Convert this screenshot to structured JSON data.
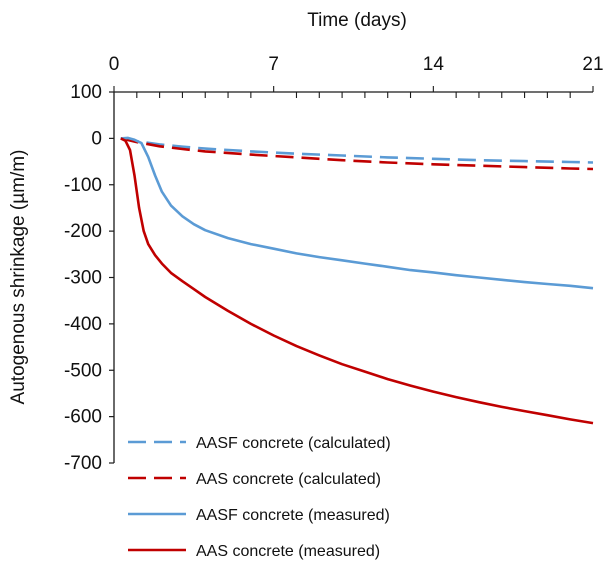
{
  "chart_data": {
    "type": "line",
    "title": "",
    "xlabel": "Time (days)",
    "ylabel": "Autogenous shrinkage (µm/m)",
    "x_axis_position": "top",
    "xlim": [
      0,
      21
    ],
    "ylim": [
      -700,
      100
    ],
    "xticks": [
      0,
      7,
      14,
      21
    ],
    "yticks": [
      100,
      0,
      -100,
      -200,
      -300,
      -400,
      -500,
      -600,
      -700
    ],
    "grid": false,
    "legend_position": "bottom-left",
    "series": [
      {
        "name": "AASF concrete (calculated)",
        "color": "#5b9bd5",
        "dash": true,
        "x": [
          0.3,
          1,
          2,
          3,
          4,
          6,
          8,
          10,
          12,
          14,
          16,
          18,
          20,
          21
        ],
        "y": [
          0,
          -6,
          -13,
          -18,
          -22,
          -28,
          -33,
          -37,
          -41,
          -44,
          -47,
          -49,
          -51,
          -52
        ]
      },
      {
        "name": "AAS concrete (calculated)",
        "color": "#c00000",
        "dash": true,
        "x": [
          0.3,
          1,
          2,
          3,
          4,
          6,
          8,
          10,
          12,
          14,
          16,
          18,
          20,
          21
        ],
        "y": [
          0,
          -8,
          -17,
          -23,
          -28,
          -35,
          -41,
          -47,
          -52,
          -56,
          -59,
          -62,
          -65,
          -66
        ]
      },
      {
        "name": "AASF concrete (measured)",
        "color": "#5b9bd5",
        "dash": false,
        "x": [
          0.3,
          0.6,
          0.9,
          1.2,
          1.5,
          1.8,
          2.1,
          2.5,
          3,
          3.5,
          4,
          5,
          6,
          7,
          8,
          9,
          10,
          11,
          12,
          13,
          14,
          15,
          16,
          17,
          18,
          19,
          20,
          21
        ],
        "y": [
          0,
          1,
          -3,
          -10,
          -40,
          -80,
          -115,
          -145,
          -168,
          -185,
          -198,
          -215,
          -228,
          -238,
          -248,
          -256,
          -263,
          -270,
          -277,
          -284,
          -289,
          -295,
          -300,
          -305,
          -310,
          -314,
          -318,
          -323
        ]
      },
      {
        "name": "AAS concrete (measured)",
        "color": "#c00000",
        "dash": false,
        "x": [
          0.3,
          0.5,
          0.7,
          0.9,
          1.1,
          1.3,
          1.5,
          1.8,
          2.1,
          2.5,
          3,
          3.5,
          4,
          5,
          6,
          7,
          8,
          9,
          10,
          11,
          12,
          13,
          14,
          15,
          16,
          17,
          18,
          19,
          20,
          21
        ],
        "y": [
          0,
          -5,
          -25,
          -80,
          -150,
          -200,
          -228,
          -252,
          -270,
          -290,
          -308,
          -325,
          -342,
          -372,
          -400,
          -425,
          -448,
          -468,
          -487,
          -503,
          -519,
          -533,
          -546,
          -558,
          -569,
          -579,
          -588,
          -597,
          -606,
          -614
        ]
      }
    ]
  }
}
